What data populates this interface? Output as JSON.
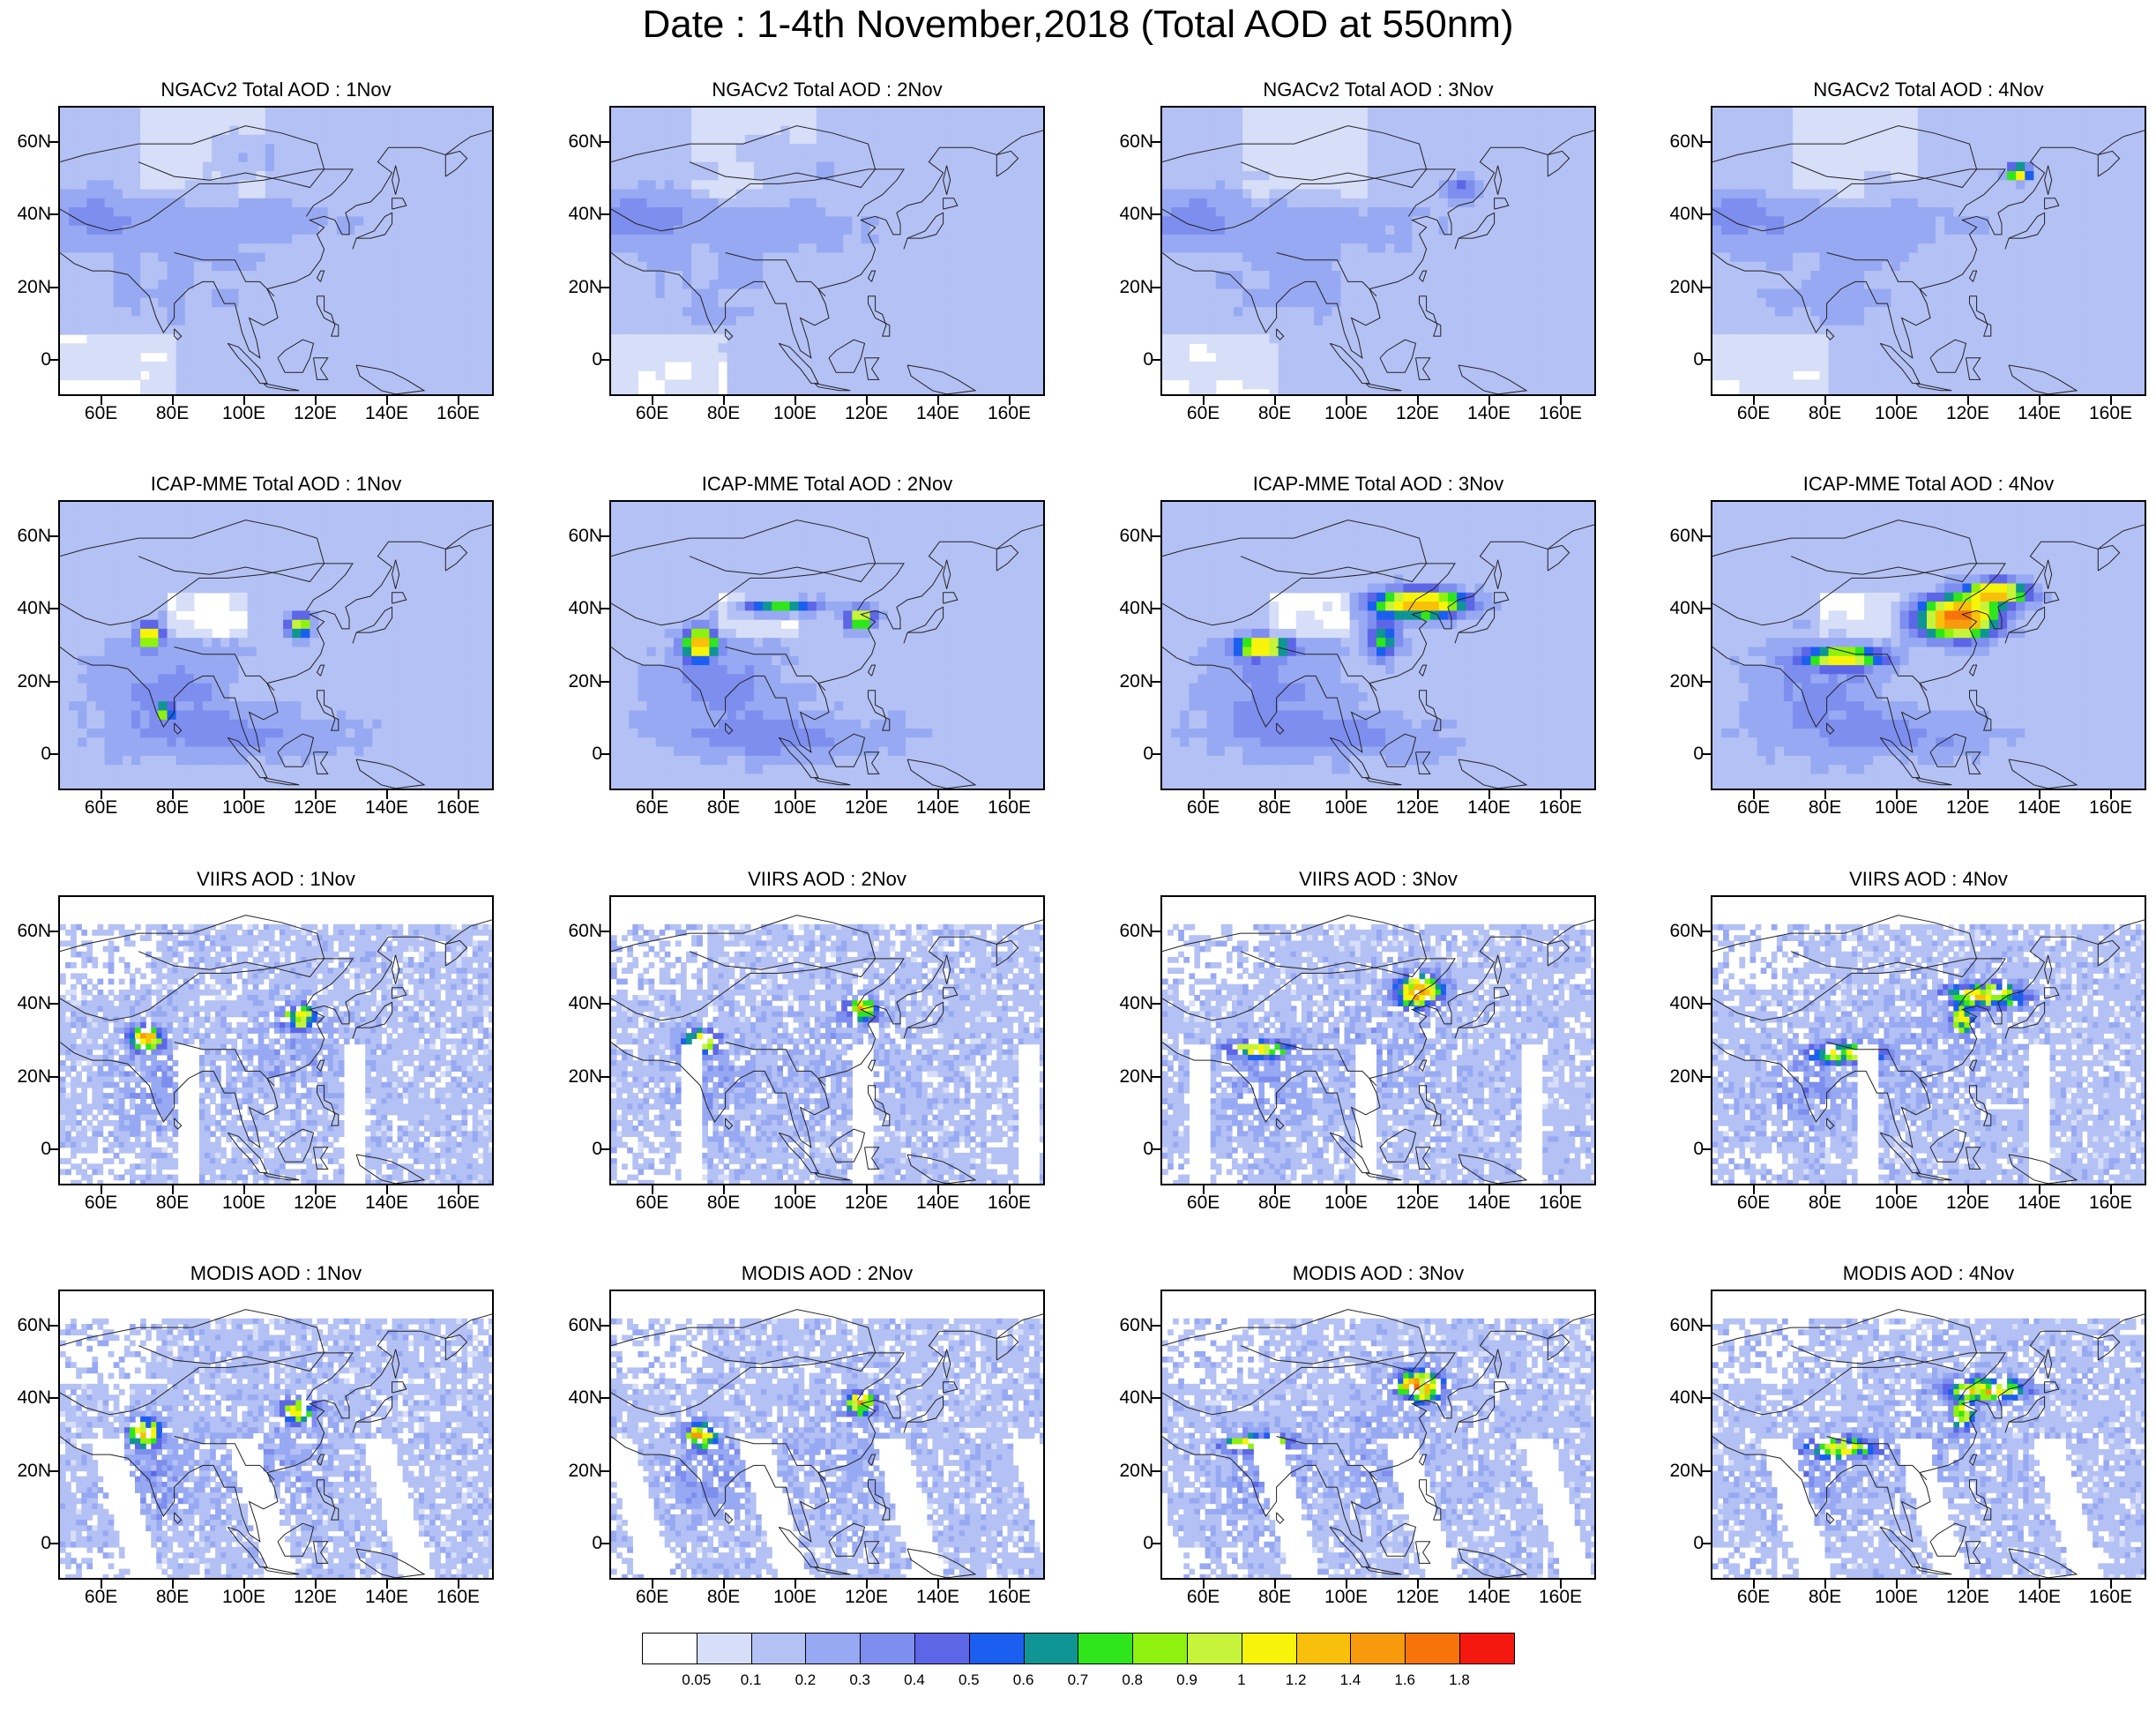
{
  "title": "Date : 1-4th November,2018 (Total AOD at 550nm)",
  "x_tick_labels": [
    "60E",
    "80E",
    "100E",
    "120E",
    "140E",
    "160E"
  ],
  "y_tick_labels": [
    "60N",
    "40N",
    "20N",
    "0"
  ],
  "lon_range": [
    48,
    170
  ],
  "lat_range": [
    -10,
    70
  ],
  "panels": [
    {
      "row": 0,
      "col": 0,
      "title": "NGACv2 Total AOD : 1Nov",
      "model": "NGACv2",
      "day": 1
    },
    {
      "row": 0,
      "col": 1,
      "title": "NGACv2 Total AOD : 2Nov",
      "model": "NGACv2",
      "day": 2
    },
    {
      "row": 0,
      "col": 2,
      "title": "NGACv2 Total AOD : 3Nov",
      "model": "NGACv2",
      "day": 3
    },
    {
      "row": 0,
      "col": 3,
      "title": "NGACv2 Total AOD : 4Nov",
      "model": "NGACv2",
      "day": 4
    },
    {
      "row": 1,
      "col": 0,
      "title": "ICAP-MME Total AOD : 1Nov",
      "model": "ICAP",
      "day": 1
    },
    {
      "row": 1,
      "col": 1,
      "title": "ICAP-MME Total AOD : 2Nov",
      "model": "ICAP",
      "day": 2
    },
    {
      "row": 1,
      "col": 2,
      "title": "ICAP-MME Total AOD : 3Nov",
      "model": "ICAP",
      "day": 3
    },
    {
      "row": 1,
      "col": 3,
      "title": "ICAP-MME Total AOD : 4Nov",
      "model": "ICAP",
      "day": 4
    },
    {
      "row": 2,
      "col": 0,
      "title": "VIIRS AOD : 1Nov",
      "model": "VIIRS",
      "day": 1
    },
    {
      "row": 2,
      "col": 1,
      "title": "VIIRS AOD : 2Nov",
      "model": "VIIRS",
      "day": 2
    },
    {
      "row": 2,
      "col": 2,
      "title": "VIIRS AOD : 3Nov",
      "model": "VIIRS",
      "day": 3
    },
    {
      "row": 2,
      "col": 3,
      "title": "VIIRS AOD : 4Nov",
      "model": "VIIRS",
      "day": 4
    },
    {
      "row": 3,
      "col": 0,
      "title": "MODIS AOD : 1Nov",
      "model": "MODIS",
      "day": 1
    },
    {
      "row": 3,
      "col": 1,
      "title": "MODIS AOD : 2Nov",
      "model": "MODIS",
      "day": 2
    },
    {
      "row": 3,
      "col": 2,
      "title": "MODIS AOD : 3Nov",
      "model": "MODIS",
      "day": 3
    },
    {
      "row": 3,
      "col": 3,
      "title": "MODIS AOD : 4Nov",
      "model": "MODIS",
      "day": 4
    }
  ],
  "colorbar": {
    "labels": [
      "0.05",
      "0.1",
      "0.2",
      "0.3",
      "0.4",
      "0.5",
      "0.6",
      "0.7",
      "0.8",
      "0.9",
      "1",
      "1.2",
      "1.4",
      "1.6",
      "1.8"
    ],
    "colors": [
      "#ffffff",
      "#d6def8",
      "#b4c1f4",
      "#97a9f2",
      "#7d8eef",
      "#5d66e6",
      "#1b5ff0",
      "#0f9694",
      "#2fe61c",
      "#8ff20e",
      "#c6f43a",
      "#f7f40a",
      "#f8c00a",
      "#f79a0c",
      "#f7740a",
      "#f4180e"
    ]
  }
}
